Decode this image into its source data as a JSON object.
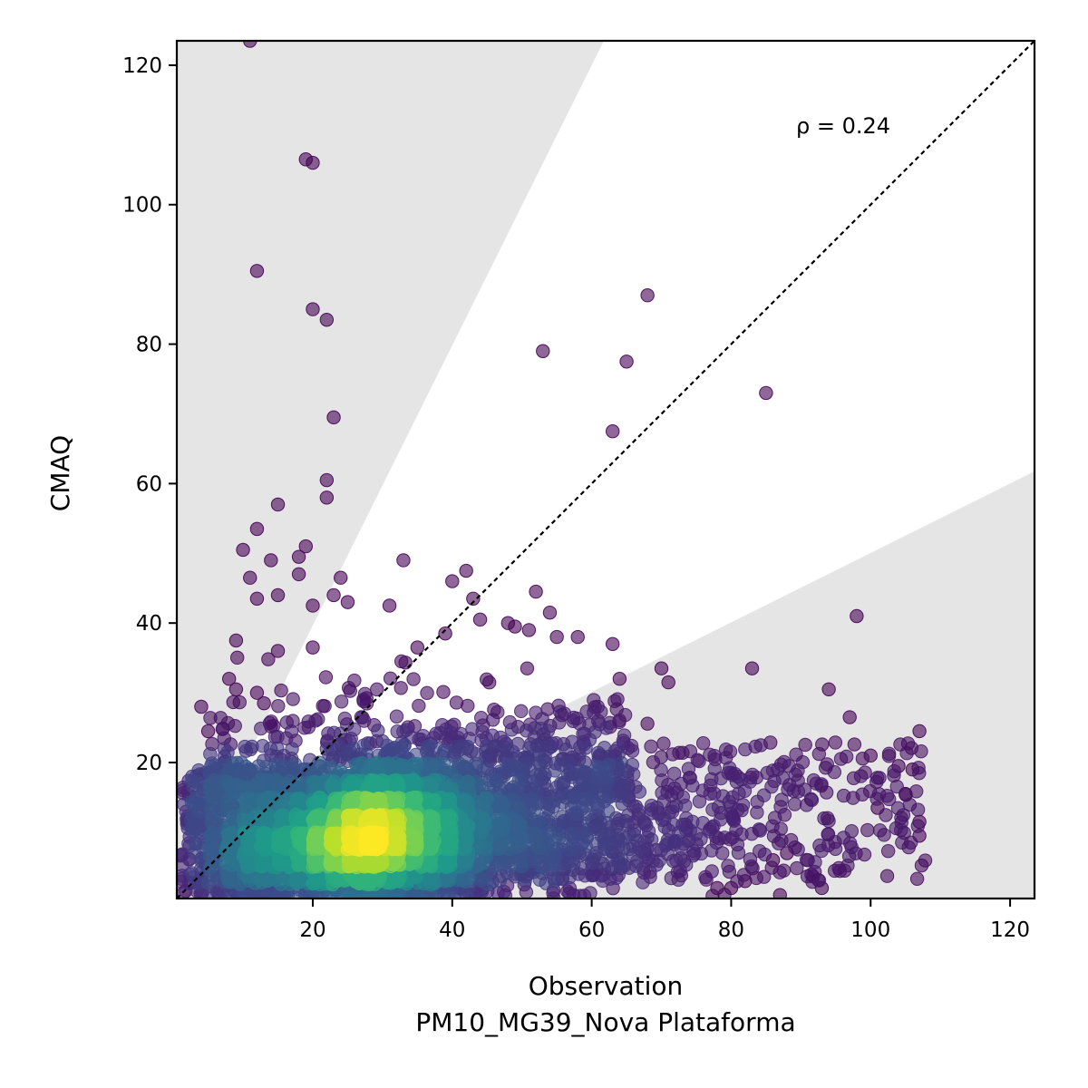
{
  "chart_data": {
    "type": "scatter",
    "xlabel": "Observation",
    "xlabel_sub": "PM10_MG39_Nova Plataforma",
    "ylabel": "CMAQ",
    "xlim": [
      0.5,
      123.5
    ],
    "ylim": [
      0.5,
      123.5
    ],
    "x_ticks": [
      20,
      40,
      60,
      80,
      100,
      120
    ],
    "x_tick_labels": [
      "20",
      "40",
      "60",
      "80",
      "100",
      "120"
    ],
    "y_ticks": [
      20,
      40,
      60,
      80,
      100,
      120
    ],
    "y_tick_labels": [
      "20",
      "40",
      "60",
      "80",
      "100",
      "120"
    ],
    "annotation": "ρ = 0.24",
    "identity_line": true,
    "shaded_band_upper_slope": 2.0,
    "shaded_band_lower_slope": 0.5,
    "colormap": "viridis",
    "outliers": [
      [
        11,
        123.5
      ],
      [
        19,
        106.5
      ],
      [
        20,
        106
      ],
      [
        12,
        90.5
      ],
      [
        20,
        85
      ],
      [
        22,
        83.5
      ],
      [
        23,
        69.5
      ],
      [
        22,
        60.5
      ],
      [
        22,
        58
      ],
      [
        15,
        57
      ],
      [
        12,
        53.5
      ],
      [
        10,
        50.5
      ],
      [
        19,
        51
      ],
      [
        14,
        49
      ],
      [
        18,
        49.5
      ],
      [
        18,
        47
      ],
      [
        11,
        46.5
      ],
      [
        24,
        46.5
      ],
      [
        12,
        43.5
      ],
      [
        15,
        44
      ],
      [
        20,
        42.5
      ],
      [
        23,
        44
      ],
      [
        25,
        43
      ],
      [
        31,
        42.5
      ],
      [
        33,
        49
      ],
      [
        40,
        46
      ],
      [
        42,
        47.5
      ],
      [
        43,
        43.5
      ],
      [
        44,
        40.5
      ],
      [
        9,
        37.5
      ],
      [
        15,
        36
      ],
      [
        20,
        36.5
      ],
      [
        35,
        36.5
      ],
      [
        39,
        38.5
      ],
      [
        48,
        40
      ],
      [
        49,
        39.5
      ],
      [
        51,
        39
      ],
      [
        52,
        44.5
      ],
      [
        54,
        41.5
      ],
      [
        55,
        38
      ],
      [
        58,
        38
      ],
      [
        53,
        79
      ],
      [
        65,
        77.5
      ],
      [
        68,
        87
      ],
      [
        63,
        67.5
      ],
      [
        85,
        73
      ],
      [
        98,
        41
      ],
      [
        63,
        37
      ],
      [
        64,
        32
      ],
      [
        70,
        33.5
      ],
      [
        71,
        31.5
      ],
      [
        83,
        33.5
      ],
      [
        94,
        30.5
      ],
      [
        97,
        26.5
      ],
      [
        107,
        24.5
      ],
      [
        104,
        19.5
      ],
      [
        106,
        19
      ],
      [
        100,
        21
      ],
      [
        105,
        15.5
      ],
      [
        101,
        13.5
      ],
      [
        107,
        11.5
      ],
      [
        107,
        9.5
      ],
      [
        93,
        2
      ],
      [
        87,
        1
      ],
      [
        80,
        2
      ],
      [
        82,
        3
      ],
      [
        78,
        2
      ],
      [
        86,
        6
      ],
      [
        88,
        7
      ],
      [
        91,
        6
      ],
      [
        8,
        32
      ],
      [
        9,
        30.5
      ],
      [
        12,
        30
      ],
      [
        13,
        28.5
      ],
      [
        4,
        28
      ],
      [
        5,
        24.5
      ],
      [
        3,
        15
      ]
    ]
  }
}
